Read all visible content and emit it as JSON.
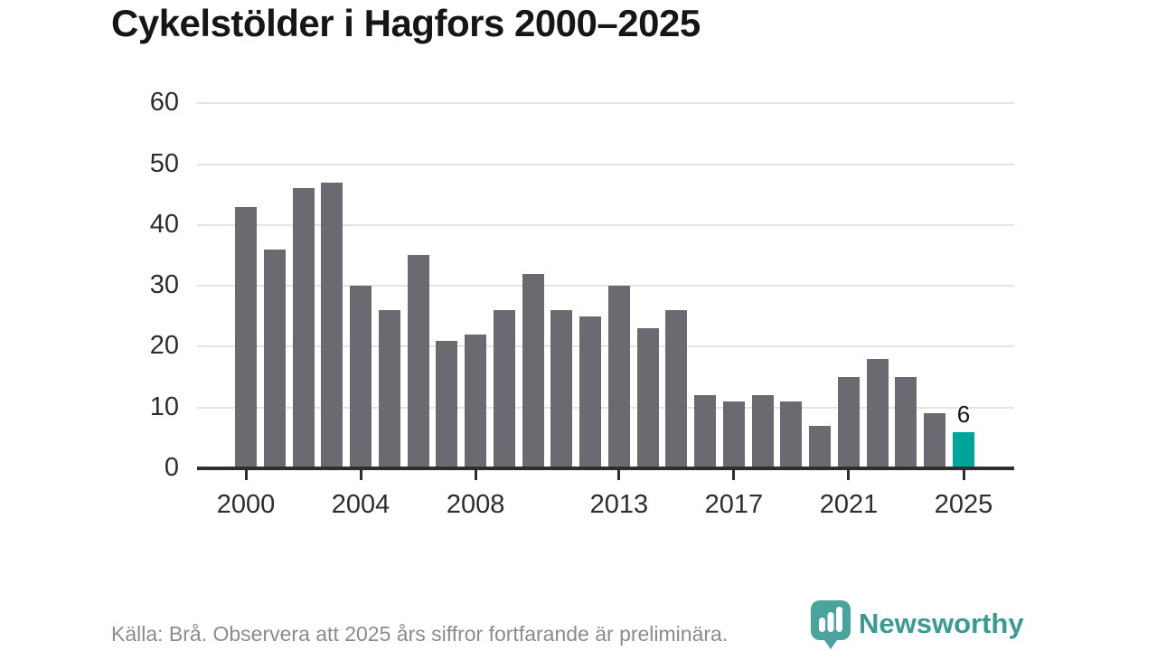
{
  "title": "Cykelstölder i Hagfors 2000–2025",
  "footer": {
    "source_note": "Källa: Brå. Observera att 2025 års siffror fortfarande är preliminära.",
    "brand": "Newsworthy"
  },
  "colors": {
    "bar": "#6b6a71",
    "highlight": "#00a59a",
    "brand_teal": "#3d9e96",
    "grid": "#e4e4e4",
    "axis": "#2e2e2e",
    "text_dark": "#161616",
    "muted": "#8b8b8b"
  },
  "chart_data": {
    "type": "bar",
    "title": "Cykelstölder i Hagfors 2000–2025",
    "categories": [
      2000,
      2001,
      2002,
      2003,
      2004,
      2005,
      2006,
      2007,
      2008,
      2009,
      2010,
      2011,
      2012,
      2013,
      2014,
      2015,
      2016,
      2017,
      2018,
      2019,
      2020,
      2021,
      2022,
      2023,
      2024,
      2025
    ],
    "values": [
      43,
      36,
      46,
      47,
      30,
      26,
      35,
      21,
      22,
      26,
      32,
      26,
      25,
      30,
      23,
      26,
      12,
      11,
      12,
      11,
      7,
      15,
      18,
      15,
      9,
      6
    ],
    "highlight_index": 25,
    "highlight_label": "6",
    "xlabel": "",
    "ylabel": "",
    "ylim": [
      0,
      60
    ],
    "yticks": [
      0,
      10,
      20,
      30,
      40,
      50,
      60
    ],
    "xtick_years": [
      2000,
      2004,
      2008,
      2013,
      2017,
      2021,
      2025
    ],
    "xtick_labels": [
      "2000",
      "2004",
      "2008",
      "2013",
      "2017",
      "2021",
      "2025"
    ],
    "grid": "horizontal",
    "legend": "none"
  }
}
